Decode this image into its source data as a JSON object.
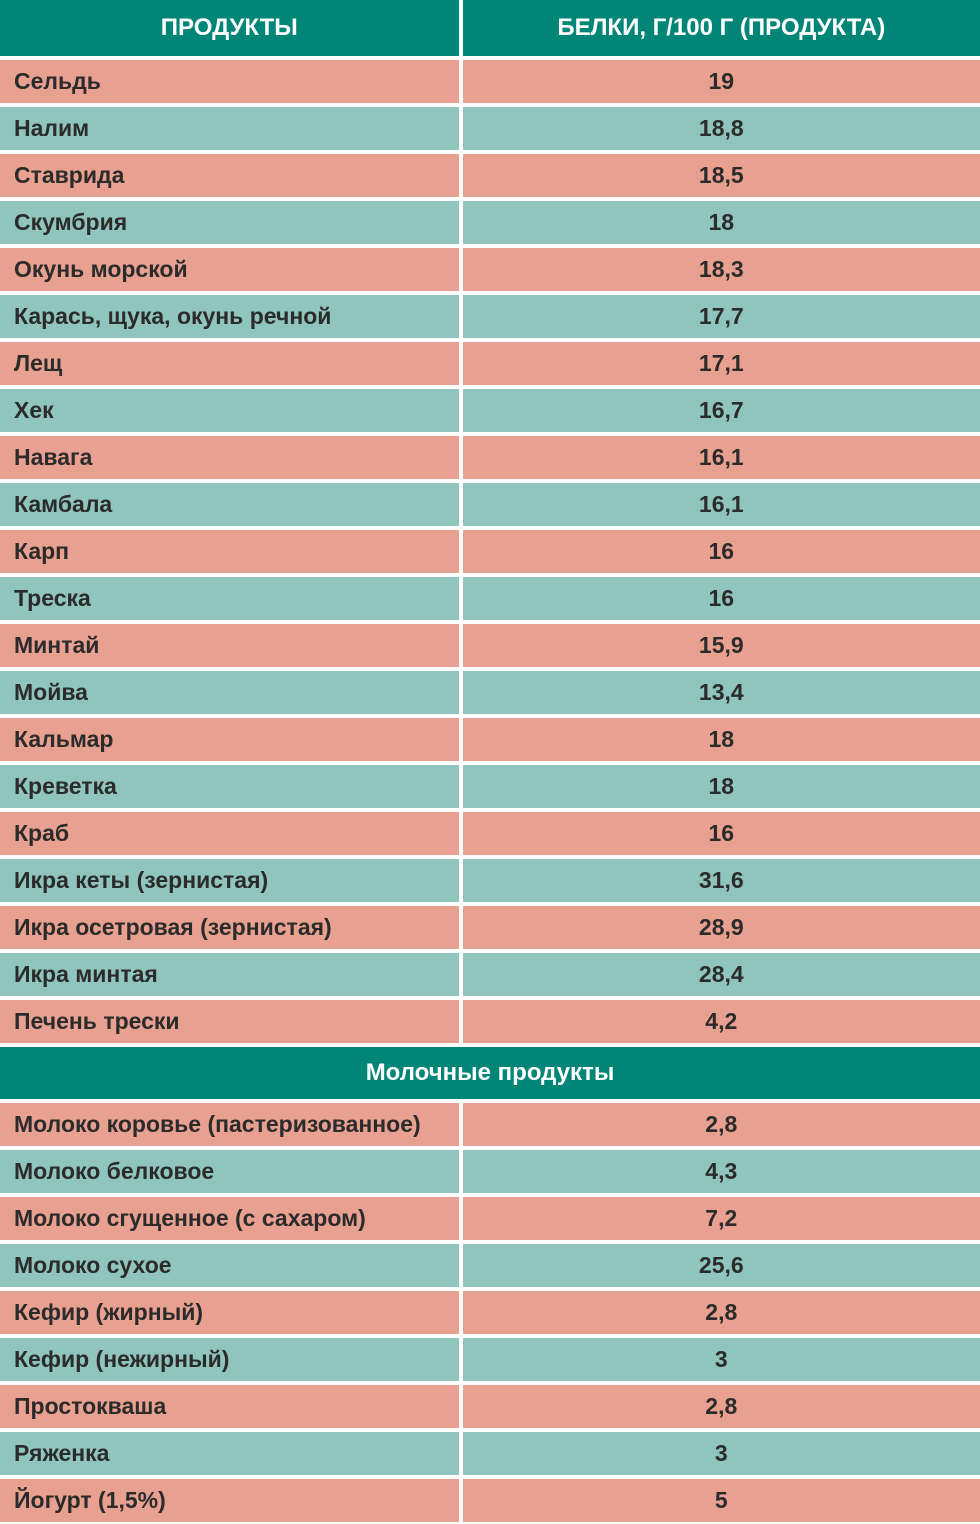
{
  "colors": {
    "header_bg": "#008577",
    "header_text": "#ffffff",
    "row_odd_bg": "#e8a190",
    "row_even_bg": "#8fc5bc",
    "cell_text": "#2b2b2b",
    "border": "#ffffff"
  },
  "typography": {
    "font_family": "Arial, Helvetica, sans-serif",
    "header_fontsize": 24,
    "cell_fontsize": 23,
    "header_fontweight": "bold",
    "cell_fontweight": "bold"
  },
  "layout": {
    "col1_width_pct": 47,
    "col2_width_pct": 53,
    "row_padding_v": 8,
    "row_padding_h": 14
  },
  "header": {
    "col1": "ПРОДУКТЫ",
    "col2": "БЕЛКИ, Г/100 Г (ПРОДУКТА)"
  },
  "section1": {
    "rows": [
      {
        "product": "Сельдь",
        "value": "19"
      },
      {
        "product": "Налим",
        "value": "18,8"
      },
      {
        "product": "Ставрида",
        "value": "18,5"
      },
      {
        "product": "Скумбрия",
        "value": "18"
      },
      {
        "product": "Окунь морской",
        "value": "18,3"
      },
      {
        "product": "Карась, щука, окунь речной",
        "value": "17,7"
      },
      {
        "product": "Лещ",
        "value": "17,1"
      },
      {
        "product": "Хек",
        "value": "16,7"
      },
      {
        "product": "Навага",
        "value": "16,1"
      },
      {
        "product": "Камбала",
        "value": "16,1"
      },
      {
        "product": "Карп",
        "value": "16"
      },
      {
        "product": "Треска",
        "value": "16"
      },
      {
        "product": "Минтай",
        "value": "15,9"
      },
      {
        "product": "Мойва",
        "value": "13,4"
      },
      {
        "product": "Кальмар",
        "value": "18"
      },
      {
        "product": "Креветка",
        "value": "18"
      },
      {
        "product": "Краб",
        "value": "16"
      },
      {
        "product": "Икра кеты (зернистая)",
        "value": "31,6"
      },
      {
        "product": "Икра осетровая (зернистая)",
        "value": "28,9"
      },
      {
        "product": "Икра минтая",
        "value": "28,4"
      },
      {
        "product": "Печень трески",
        "value": "4,2"
      }
    ]
  },
  "section2": {
    "title": "Молочные продукты",
    "rows": [
      {
        "product": "Молоко коровье (пастеризованное)",
        "value": "2,8"
      },
      {
        "product": "Молоко белковое",
        "value": "4,3"
      },
      {
        "product": "Молоко сгущенное (с сахаром)",
        "value": "7,2"
      },
      {
        "product": "Молоко сухое",
        "value": "25,6"
      },
      {
        "product": "Кефир (жирный)",
        "value": "2,8"
      },
      {
        "product": "Кефир (нежирный)",
        "value": "3"
      },
      {
        "product": "Простокваша",
        "value": "2,8"
      },
      {
        "product": "Ряженка",
        "value": "3"
      },
      {
        "product": "Йогурт (1,5%)",
        "value": "5"
      }
    ]
  }
}
